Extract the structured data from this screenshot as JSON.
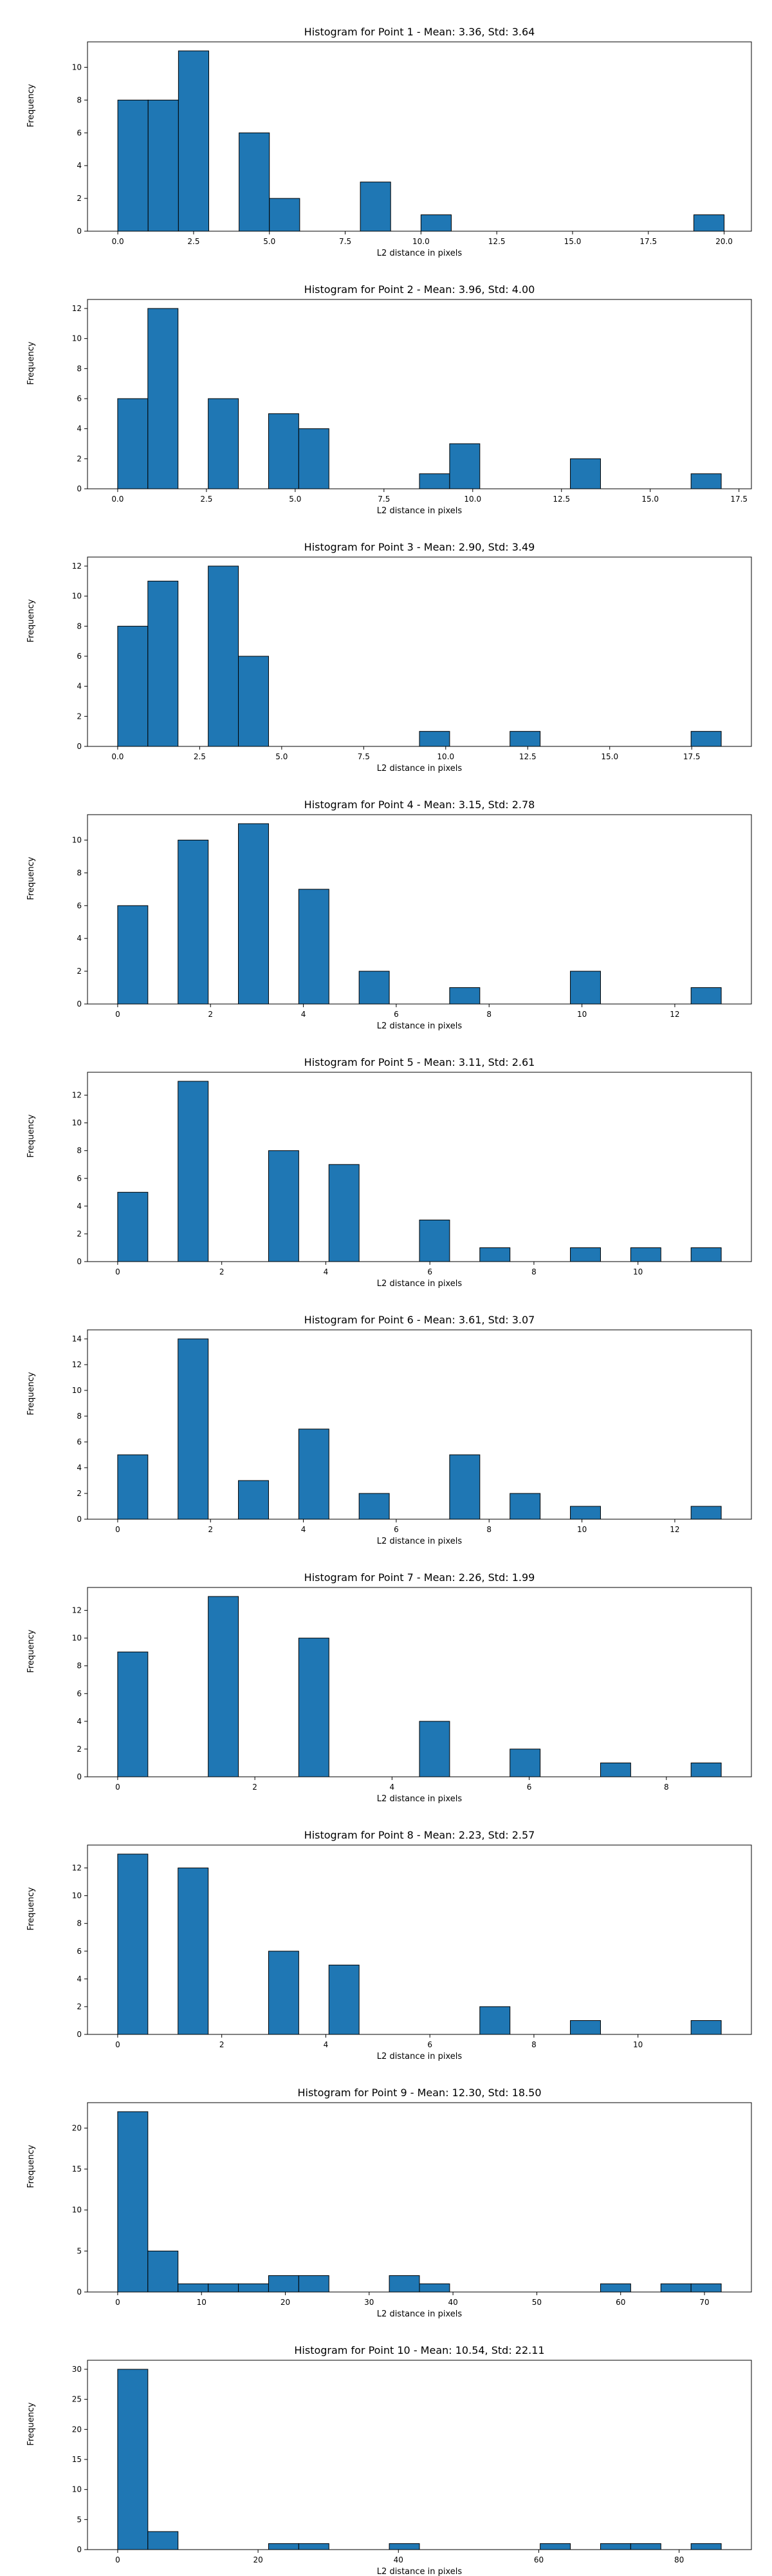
{
  "figure": {
    "background": "#ffffff",
    "bar_color": "#1f77b4",
    "edge_color": "#000000"
  },
  "chart_data": [
    {
      "type": "bar",
      "title": "Histogram for Point 1 - Mean: 3.36, Std: 3.64",
      "xlabel": "L2 distance in pixels",
      "ylabel": "Frequency",
      "xlim": [
        -1.0,
        20.9
      ],
      "ylim": [
        0,
        11.55
      ],
      "xticks": [
        0.0,
        2.5,
        5.0,
        7.5,
        10.0,
        12.5,
        15.0,
        17.5,
        20.0
      ],
      "xtick_labels": [
        "0.0",
        "2.5",
        "5.0",
        "7.5",
        "10.0",
        "12.5",
        "15.0",
        "17.5",
        "20.0"
      ],
      "yticks": [
        0,
        2,
        4,
        6,
        8,
        10
      ],
      "bin_edges": [
        0.0,
        1.0,
        2.0,
        3.0,
        4.0,
        5.0,
        6.0,
        7.0,
        8.0,
        9.0,
        10.0,
        11.0,
        12.0,
        13.0,
        14.0,
        15.0,
        16.0,
        17.0,
        18.0,
        19.0,
        20.0
      ],
      "values": [
        8,
        8,
        11,
        0,
        6,
        2,
        0,
        0,
        3,
        0,
        1,
        0,
        0,
        0,
        0,
        0,
        0,
        0,
        0,
        1
      ]
    },
    {
      "type": "bar",
      "title": "Histogram for Point 2 - Mean: 3.96, Std: 4.00",
      "xlabel": "L2 distance in pixels",
      "ylabel": "Frequency",
      "xlim": [
        -0.85,
        17.85
      ],
      "ylim": [
        0,
        12.6
      ],
      "xticks": [
        0.0,
        2.5,
        5.0,
        7.5,
        10.0,
        12.5,
        15.0,
        17.5
      ],
      "xtick_labels": [
        "0.0",
        "2.5",
        "5.0",
        "7.5",
        "10.0",
        "12.5",
        "15.0",
        "17.5"
      ],
      "yticks": [
        0,
        2,
        4,
        6,
        8,
        10,
        12
      ],
      "bin_edges": [
        0.0,
        0.85,
        1.7,
        2.55,
        3.4,
        4.25,
        5.1,
        5.95,
        6.8,
        7.65,
        8.5,
        9.35,
        10.2,
        11.05,
        11.9,
        12.75,
        13.6,
        14.45,
        15.3,
        16.15,
        17.0
      ],
      "values": [
        6,
        12,
        0,
        6,
        0,
        5,
        4,
        0,
        0,
        0,
        1,
        3,
        0,
        0,
        0,
        2,
        0,
        0,
        0,
        1
      ]
    },
    {
      "type": "bar",
      "title": "Histogram for Point 3 - Mean: 2.90, Std: 3.49",
      "xlabel": "L2 distance in pixels",
      "ylabel": "Frequency",
      "xlim": [
        -0.92,
        19.32
      ],
      "ylim": [
        0,
        12.6
      ],
      "xticks": [
        0.0,
        2.5,
        5.0,
        7.5,
        10.0,
        12.5,
        15.0,
        17.5
      ],
      "xtick_labels": [
        "0.0",
        "2.5",
        "5.0",
        "7.5",
        "10.0",
        "12.5",
        "15.0",
        "17.5"
      ],
      "yticks": [
        0,
        2,
        4,
        6,
        8,
        10,
        12
      ],
      "bin_edges": [
        0.0,
        0.92,
        1.84,
        2.76,
        3.68,
        4.6,
        5.52,
        6.44,
        7.36,
        8.28,
        9.2,
        10.12,
        11.04,
        11.96,
        12.88,
        13.8,
        14.72,
        15.64,
        16.56,
        17.48,
        18.4
      ],
      "values": [
        8,
        11,
        0,
        12,
        6,
        0,
        0,
        0,
        0,
        0,
        1,
        0,
        0,
        1,
        0,
        0,
        0,
        0,
        0,
        1
      ]
    },
    {
      "type": "bar",
      "title": "Histogram for Point 4 - Mean: 3.15, Std: 2.78",
      "xlabel": "L2 distance in pixels",
      "ylabel": "Frequency",
      "xlim": [
        -0.65,
        13.65
      ],
      "ylim": [
        0,
        11.55
      ],
      "xticks": [
        0,
        2,
        4,
        6,
        8,
        10,
        12
      ],
      "xtick_labels": [
        "0",
        "2",
        "4",
        "6",
        "8",
        "10",
        "12"
      ],
      "yticks": [
        0,
        2,
        4,
        6,
        8,
        10
      ],
      "bin_edges": [
        0.0,
        0.65,
        1.3,
        1.95,
        2.6,
        3.25,
        3.9,
        4.55,
        5.2,
        5.85,
        6.5,
        7.15,
        7.8,
        8.45,
        9.1,
        9.75,
        10.4,
        11.05,
        11.7,
        12.35,
        13.0
      ],
      "values": [
        6,
        0,
        10,
        0,
        11,
        0,
        7,
        0,
        2,
        0,
        0,
        1,
        0,
        0,
        0,
        2,
        0,
        0,
        0,
        1
      ]
    },
    {
      "type": "bar",
      "title": "Histogram for Point 5 - Mean: 3.11, Std: 2.61",
      "xlabel": "L2 distance in pixels",
      "ylabel": "Frequency",
      "xlim": [
        -0.58,
        12.18
      ],
      "ylim": [
        0,
        13.65
      ],
      "xticks": [
        0,
        2,
        4,
        6,
        8,
        10
      ],
      "xtick_labels": [
        "0",
        "2",
        "4",
        "6",
        "8",
        "10"
      ],
      "yticks": [
        0,
        2,
        4,
        6,
        8,
        10,
        12
      ],
      "bin_edges": [
        0.0,
        0.58,
        1.16,
        1.74,
        2.32,
        2.9,
        3.48,
        4.06,
        4.64,
        5.22,
        5.8,
        6.38,
        6.96,
        7.54,
        8.12,
        8.7,
        9.28,
        9.86,
        10.44,
        11.02,
        11.6
      ],
      "values": [
        5,
        0,
        13,
        0,
        0,
        8,
        0,
        7,
        0,
        0,
        3,
        0,
        1,
        0,
        0,
        1,
        0,
        1,
        0,
        1
      ]
    },
    {
      "type": "bar",
      "title": "Histogram for Point 6 - Mean: 3.61, Std: 3.07",
      "xlabel": "L2 distance in pixels",
      "ylabel": "Frequency",
      "xlim": [
        -0.65,
        13.65
      ],
      "ylim": [
        0,
        14.7
      ],
      "xticks": [
        0,
        2,
        4,
        6,
        8,
        10,
        12
      ],
      "xtick_labels": [
        "0",
        "2",
        "4",
        "6",
        "8",
        "10",
        "12"
      ],
      "yticks": [
        0,
        2,
        4,
        6,
        8,
        10,
        12,
        14
      ],
      "bin_edges": [
        0.0,
        0.65,
        1.3,
        1.95,
        2.6,
        3.25,
        3.9,
        4.55,
        5.2,
        5.85,
        6.5,
        7.15,
        7.8,
        8.45,
        9.1,
        9.75,
        10.4,
        11.05,
        11.7,
        12.35,
        13.0
      ],
      "values": [
        5,
        0,
        14,
        0,
        3,
        0,
        7,
        0,
        2,
        0,
        0,
        5,
        0,
        2,
        0,
        1,
        0,
        0,
        0,
        1
      ]
    },
    {
      "type": "bar",
      "title": "Histogram for Point 7 - Mean: 2.26, Std: 1.99",
      "xlabel": "L2 distance in pixels",
      "ylabel": "Frequency",
      "xlim": [
        -0.44,
        9.24
      ],
      "ylim": [
        0,
        13.65
      ],
      "xticks": [
        0,
        2,
        4,
        6,
        8
      ],
      "xtick_labels": [
        "0",
        "2",
        "4",
        "6",
        "8"
      ],
      "yticks": [
        0,
        2,
        4,
        6,
        8,
        10,
        12
      ],
      "bin_edges": [
        0.0,
        0.44,
        0.88,
        1.32,
        1.76,
        2.2,
        2.64,
        3.08,
        3.52,
        3.96,
        4.4,
        4.84,
        5.28,
        5.72,
        6.16,
        6.6,
        7.04,
        7.48,
        7.92,
        8.36,
        8.8
      ],
      "values": [
        9,
        0,
        0,
        13,
        0,
        0,
        10,
        0,
        0,
        0,
        4,
        0,
        0,
        2,
        0,
        0,
        1,
        0,
        0,
        1
      ]
    },
    {
      "type": "bar",
      "title": "Histogram for Point 8 - Mean: 2.23, Std: 2.57",
      "xlabel": "L2 distance in pixels",
      "ylabel": "Frequency",
      "xlim": [
        -0.58,
        12.18
      ],
      "ylim": [
        0,
        13.65
      ],
      "xticks": [
        0,
        2,
        4,
        6,
        8,
        10
      ],
      "xtick_labels": [
        "0",
        "2",
        "4",
        "6",
        "8",
        "10"
      ],
      "yticks": [
        0,
        2,
        4,
        6,
        8,
        10,
        12
      ],
      "bin_edges": [
        0.0,
        0.58,
        1.16,
        1.74,
        2.32,
        2.9,
        3.48,
        4.06,
        4.64,
        5.22,
        5.8,
        6.38,
        6.96,
        7.54,
        8.12,
        8.7,
        9.28,
        9.86,
        10.44,
        11.02,
        11.6
      ],
      "values": [
        13,
        0,
        12,
        0,
        0,
        6,
        0,
        5,
        0,
        0,
        0,
        0,
        2,
        0,
        0,
        1,
        0,
        0,
        0,
        1
      ]
    },
    {
      "type": "bar",
      "title": "Histogram for Point 9 - Mean: 12.30, Std: 18.50",
      "xlabel": "L2 distance in pixels",
      "ylabel": "Frequency",
      "xlim": [
        -3.6,
        75.6
      ],
      "ylim": [
        0,
        23.1
      ],
      "xticks": [
        0,
        10,
        20,
        30,
        40,
        50,
        60,
        70
      ],
      "xtick_labels": [
        "0",
        "10",
        "20",
        "30",
        "40",
        "50",
        "60",
        "70"
      ],
      "yticks": [
        0,
        5,
        10,
        15,
        20
      ],
      "bin_edges": [
        0.0,
        3.6,
        7.2,
        10.8,
        14.4,
        18.0,
        21.6,
        25.2,
        28.8,
        32.4,
        36.0,
        39.6,
        43.2,
        46.8,
        50.4,
        54.0,
        57.6,
        61.2,
        64.8,
        68.4,
        72.0
      ],
      "values": [
        22,
        5,
        1,
        1,
        1,
        2,
        2,
        0,
        0,
        2,
        1,
        0,
        0,
        0,
        0,
        0,
        1,
        0,
        1,
        1
      ]
    },
    {
      "type": "bar",
      "title": "Histogram for Point 10 - Mean: 10.54, Std: 22.11",
      "xlabel": "L2 distance in pixels",
      "ylabel": "Frequency",
      "xlim": [
        -4.3,
        90.3
      ],
      "ylim": [
        0,
        31.5
      ],
      "xticks": [
        0,
        20,
        40,
        60,
        80
      ],
      "xtick_labels": [
        "0",
        "20",
        "40",
        "60",
        "80"
      ],
      "yticks": [
        0,
        5,
        10,
        15,
        20,
        25,
        30
      ],
      "bin_edges": [
        0.0,
        4.3,
        8.6,
        12.9,
        17.2,
        21.5,
        25.8,
        30.1,
        34.4,
        38.7,
        43.0,
        47.3,
        51.6,
        55.9,
        60.2,
        64.5,
        68.8,
        73.1,
        77.4,
        81.7,
        86.0
      ],
      "values": [
        30,
        3,
        0,
        0,
        0,
        1,
        1,
        0,
        0,
        1,
        0,
        0,
        0,
        0,
        1,
        0,
        1,
        1,
        0,
        1
      ]
    }
  ]
}
